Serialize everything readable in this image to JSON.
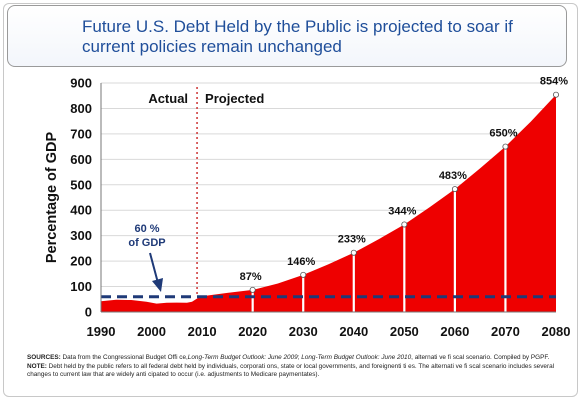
{
  "title": "Future U.S. Debt Held by the Public is projected to soar if current policies remain unchanged",
  "colors": {
    "area": "#ee0000",
    "title": "#1f4e9a",
    "threshold_line": "#1f3a78",
    "divider": "#d04040"
  },
  "chart_data": {
    "type": "area",
    "ylabel": "Percentage of GDP",
    "xlabel": "",
    "xlim": [
      1990,
      2080
    ],
    "ylim": [
      0,
      900
    ],
    "x_ticks": [
      "1990",
      "2000",
      "2010",
      "2020",
      "2030",
      "2040",
      "2050",
      "2060",
      "2070",
      "2080"
    ],
    "y_ticks": [
      "0",
      "100",
      "200",
      "300",
      "400",
      "500",
      "600",
      "700",
      "800",
      "900"
    ],
    "grid": "horizontal",
    "series": [
      {
        "x": [
          1990,
          1993,
          1996,
          1999,
          2001,
          2003,
          2005,
          2007,
          2008,
          2009,
          2010,
          2015,
          2020,
          2025,
          2030,
          2035,
          2040,
          2045,
          2050,
          2055,
          2060,
          2065,
          2070,
          2075,
          2080
        ],
        "values": [
          42,
          48,
          47,
          40,
          33,
          36,
          37,
          36,
          40,
          53,
          62,
          75,
          87,
          112,
          146,
          188,
          233,
          287,
          344,
          412,
          483,
          565,
          650,
          748,
          854
        ]
      }
    ],
    "point_labels": [
      {
        "x": 2020,
        "y": 87,
        "text": "87%"
      },
      {
        "x": 2030,
        "y": 146,
        "text": "146%"
      },
      {
        "x": 2040,
        "y": 233,
        "text": "233%"
      },
      {
        "x": 2050,
        "y": 344,
        "text": "344%"
      },
      {
        "x": 2060,
        "y": 483,
        "text": "483%"
      },
      {
        "x": 2070,
        "y": 650,
        "text": "650%"
      },
      {
        "x": 2080,
        "y": 854,
        "text": "854%"
      }
    ],
    "reference_line": {
      "y": 60,
      "style": "dashed"
    },
    "reference_label": "60 %\nof GDP",
    "divider_year": 2009,
    "region_labels": {
      "actual": "Actual",
      "projected": "Projected"
    }
  },
  "sources_label": "SOURCES:",
  "sources_text_1": " Data from the Congressional Budget Offi  ce,",
  "sources_italic_1": "Long-Term Budget Outlook: June 2009",
  "sources_text_2": "; ",
  "sources_italic_2": "Long-Term Budget Outlook: June 2010",
  "sources_text_3": ", alternati  ve fi  scal scenario. Compiled by PGPF.",
  "note_label": "NOTE:",
  "note_text": " Debt held by the public refers to all federal debt held by individuals, corporati  ons, state or local governments, and foreignenti  ti  es. The alternati  ve fi  scal scenario includes several changes to current law that are widely anti  cipated to occur (i.e. adjustments to Medicare paymentates)."
}
